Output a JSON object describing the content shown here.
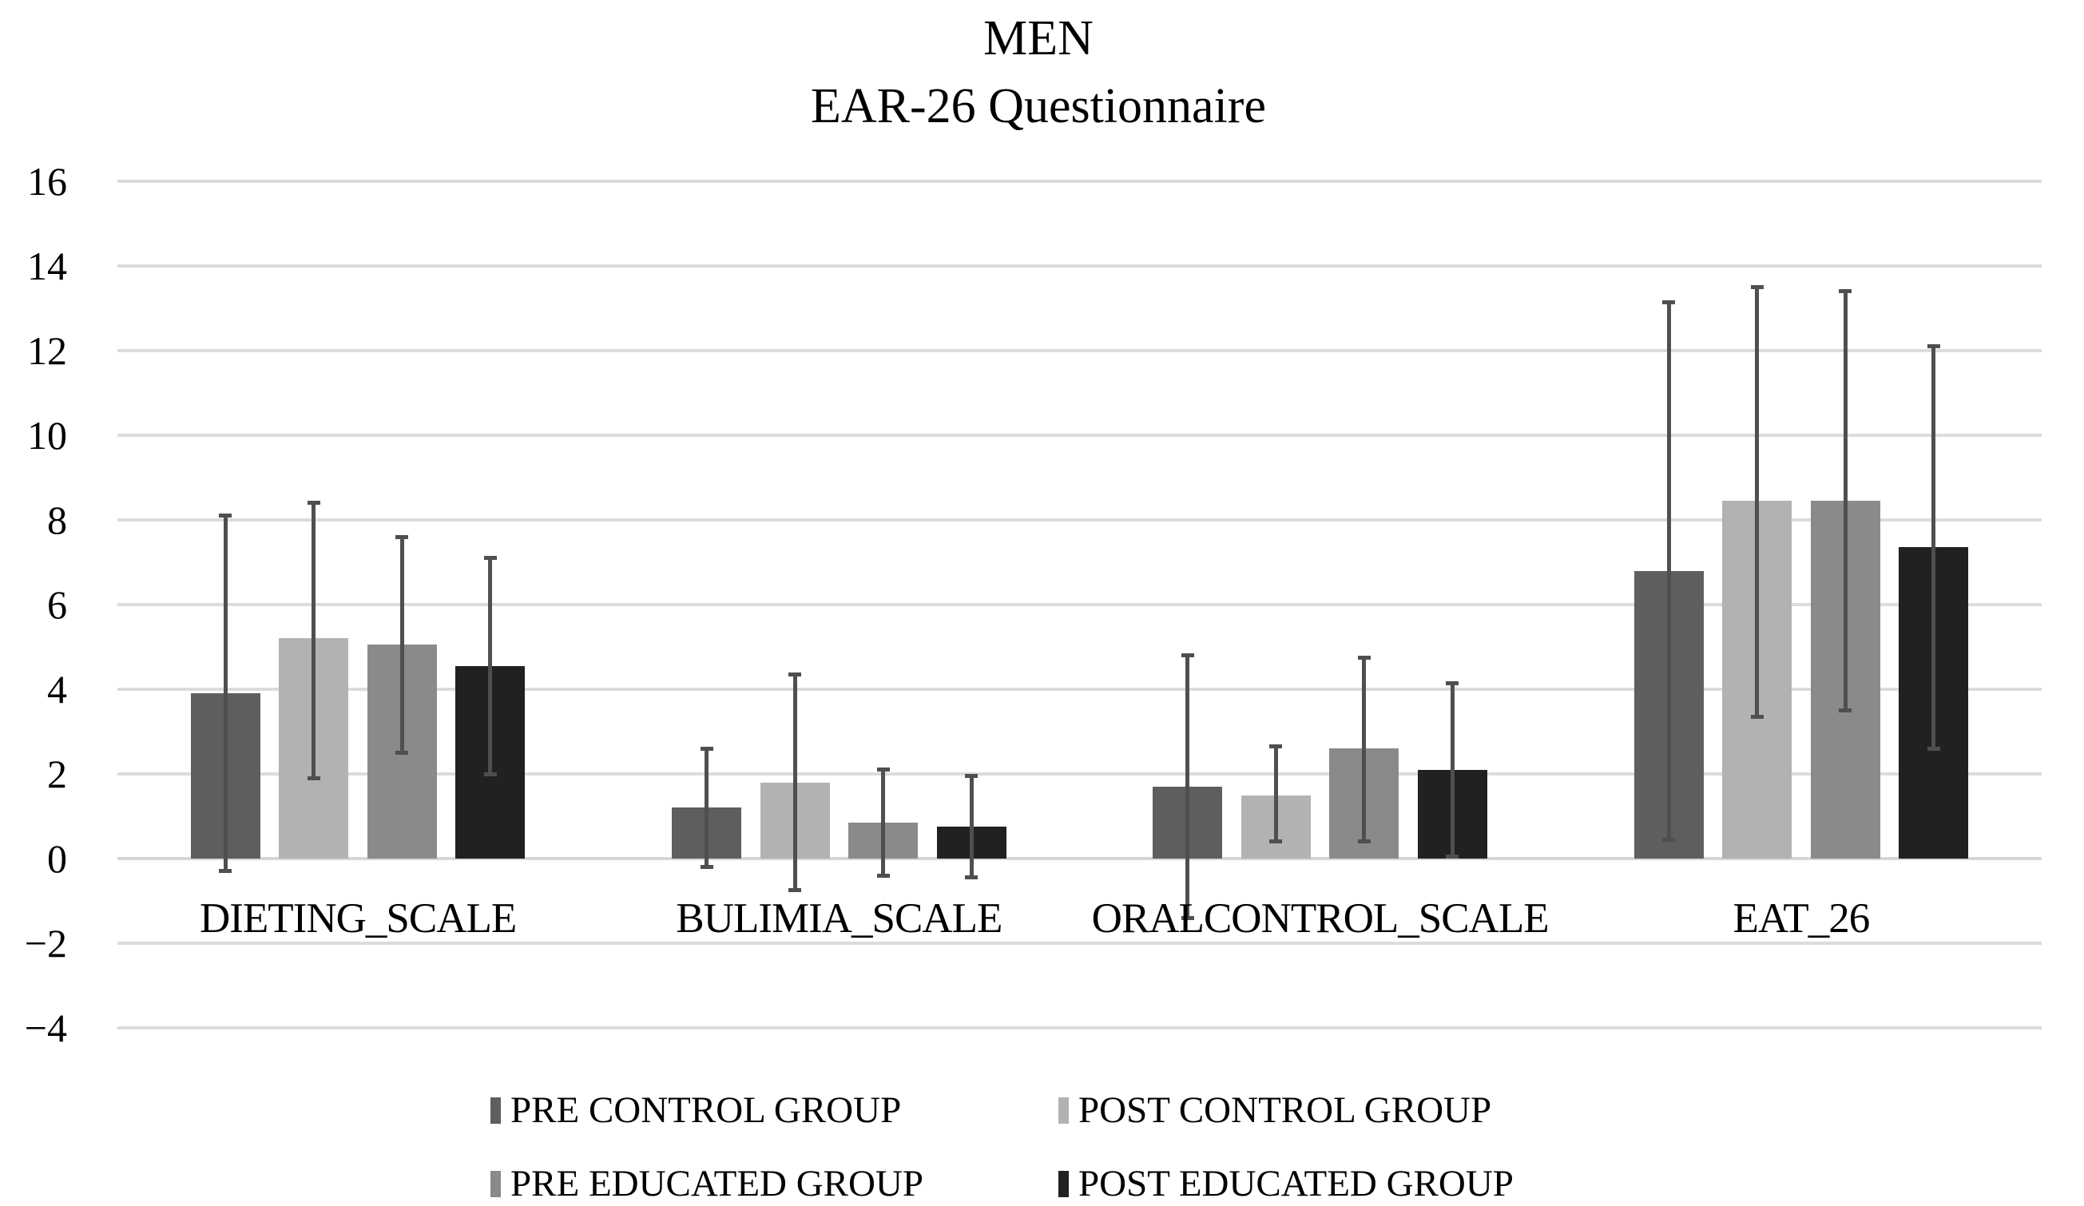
{
  "title": {
    "line1": "MEN",
    "line2": "EAR-26 Questionnaire"
  },
  "y_axis": {
    "tick_labels": [
      "16",
      "14",
      "12",
      "10",
      "8",
      "6",
      "4",
      "2",
      "0",
      "−2",
      "−4"
    ]
  },
  "chart_data": {
    "type": "bar",
    "title": "MEN",
    "subtitle": "EAR-26 Questionnaire",
    "categories": [
      "DIETING_SCALE",
      "BULIMIA_SCALE",
      "ORALCONTROL_SCALE",
      "EAT_26"
    ],
    "series": [
      {
        "name": "PRE CONTROL GROUP",
        "color": "#5e5e5e",
        "values": [
          3.9,
          1.2,
          1.7,
          6.8
        ],
        "error_upper": [
          8.1,
          2.6,
          4.8,
          13.15
        ],
        "error_lower": [
          -0.3,
          -0.2,
          -1.4,
          0.45
        ]
      },
      {
        "name": "POST CONTROL GROUP",
        "color": "#b2b2b2",
        "values": [
          5.2,
          1.8,
          1.5,
          8.45
        ],
        "error_upper": [
          8.4,
          4.35,
          2.65,
          13.5
        ],
        "error_lower": [
          1.9,
          -0.75,
          0.4,
          3.35
        ]
      },
      {
        "name": "PRE EDUCATED GROUP",
        "color": "#8a8a8a",
        "values": [
          5.05,
          0.85,
          2.6,
          8.45
        ],
        "error_upper": [
          7.6,
          2.1,
          4.75,
          13.4
        ],
        "error_lower": [
          2.5,
          -0.4,
          0.4,
          3.5
        ]
      },
      {
        "name": "POST EDUCATED GROUP",
        "color": "#212121",
        "values": [
          4.55,
          0.75,
          2.1,
          7.35
        ],
        "error_upper": [
          7.1,
          1.95,
          4.15,
          12.1
        ],
        "error_lower": [
          2.0,
          -0.45,
          0.05,
          2.6
        ]
      }
    ],
    "y_ticks": [
      16,
      14,
      12,
      10,
      8,
      6,
      4,
      2,
      0,
      -2,
      -4
    ],
    "ylim": [
      -4,
      16
    ],
    "grid": true,
    "legend_position": "bottom",
    "error_bars": true,
    "colors": {
      "gridline": "#dcdcdc",
      "zero_line": "#d6d6d6",
      "error_bar": "#4f4f4f",
      "text": "#000000",
      "background": "#ffffff"
    }
  }
}
